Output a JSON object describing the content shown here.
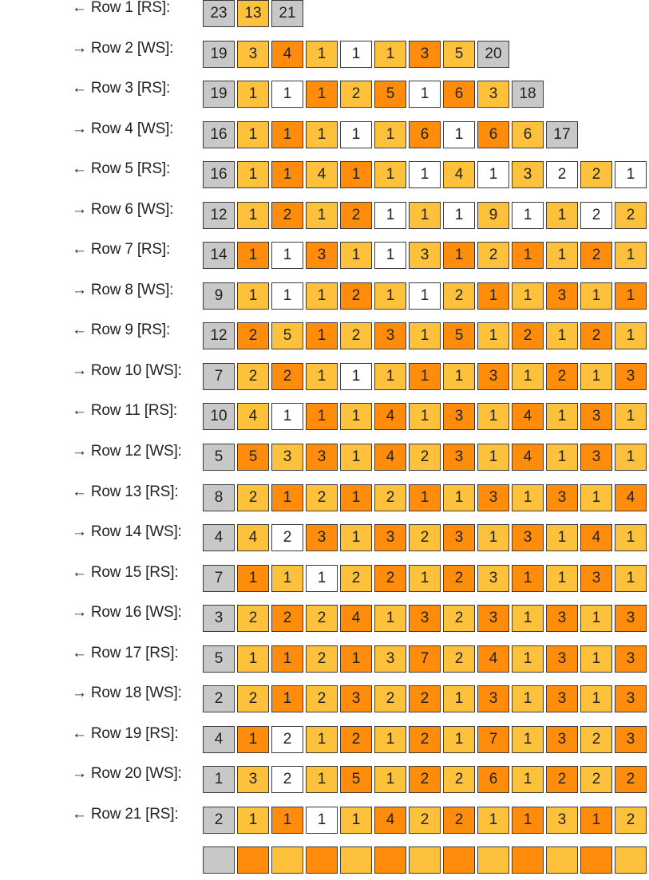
{
  "colors": {
    "g": "#c8c8c8",
    "o": "#ff8c0a",
    "y": "#fdc13b",
    "w": "#ffffff"
  },
  "rows": [
    {
      "label": "← Row 1 [RS]:",
      "cells": [
        [
          "23",
          "g"
        ],
        [
          "13",
          "y"
        ],
        [
          "21",
          "g"
        ]
      ]
    },
    {
      "label": "→ Row 2 [WS]:",
      "cells": [
        [
          "19",
          "g"
        ],
        [
          "3",
          "y"
        ],
        [
          "4",
          "o"
        ],
        [
          "1",
          "y"
        ],
        [
          "1",
          "w"
        ],
        [
          "1",
          "y"
        ],
        [
          "3",
          "o"
        ],
        [
          "5",
          "y"
        ],
        [
          "20",
          "g"
        ]
      ]
    },
    {
      "label": "← Row 3 [RS]:",
      "cells": [
        [
          "19",
          "g"
        ],
        [
          "1",
          "y"
        ],
        [
          "1",
          "w"
        ],
        [
          "1",
          "o"
        ],
        [
          "2",
          "y"
        ],
        [
          "5",
          "o"
        ],
        [
          "1",
          "w"
        ],
        [
          "6",
          "o"
        ],
        [
          "3",
          "y"
        ],
        [
          "18",
          "g"
        ]
      ]
    },
    {
      "label": "→ Row 4 [WS]:",
      "cells": [
        [
          "16",
          "g"
        ],
        [
          "1",
          "y"
        ],
        [
          "1",
          "o"
        ],
        [
          "1",
          "y"
        ],
        [
          "1",
          "w"
        ],
        [
          "1",
          "y"
        ],
        [
          "6",
          "o"
        ],
        [
          "1",
          "w"
        ],
        [
          "6",
          "o"
        ],
        [
          "6",
          "y"
        ],
        [
          "17",
          "g"
        ]
      ]
    },
    {
      "label": "← Row 5 [RS]:",
      "cells": [
        [
          "16",
          "g"
        ],
        [
          "1",
          "y"
        ],
        [
          "1",
          "o"
        ],
        [
          "4",
          "y"
        ],
        [
          "1",
          "o"
        ],
        [
          "1",
          "y"
        ],
        [
          "1",
          "w"
        ],
        [
          "4",
          "y"
        ],
        [
          "1",
          "w"
        ],
        [
          "3",
          "y"
        ],
        [
          "2",
          "w"
        ],
        [
          "2",
          "y"
        ],
        [
          "1",
          "w"
        ]
      ]
    },
    {
      "label": "→ Row 6 [WS]:",
      "cells": [
        [
          "12",
          "g"
        ],
        [
          "1",
          "y"
        ],
        [
          "2",
          "o"
        ],
        [
          "1",
          "y"
        ],
        [
          "2",
          "o"
        ],
        [
          "1",
          "w"
        ],
        [
          "1",
          "y"
        ],
        [
          "1",
          "w"
        ],
        [
          "9",
          "y"
        ],
        [
          "1",
          "w"
        ],
        [
          "1",
          "y"
        ],
        [
          "2",
          "w"
        ],
        [
          "2",
          "y"
        ]
      ]
    },
    {
      "label": "← Row 7 [RS]:",
      "cells": [
        [
          "14",
          "g"
        ],
        [
          "1",
          "o"
        ],
        [
          "1",
          "w"
        ],
        [
          "3",
          "o"
        ],
        [
          "1",
          "y"
        ],
        [
          "1",
          "w"
        ],
        [
          "3",
          "y"
        ],
        [
          "1",
          "o"
        ],
        [
          "2",
          "y"
        ],
        [
          "1",
          "o"
        ],
        [
          "1",
          "y"
        ],
        [
          "2",
          "o"
        ],
        [
          "1",
          "y"
        ]
      ]
    },
    {
      "label": "→ Row 8 [WS]:",
      "cells": [
        [
          "9",
          "g"
        ],
        [
          "1",
          "y"
        ],
        [
          "1",
          "w"
        ],
        [
          "1",
          "y"
        ],
        [
          "2",
          "o"
        ],
        [
          "1",
          "y"
        ],
        [
          "1",
          "w"
        ],
        [
          "2",
          "y"
        ],
        [
          "1",
          "o"
        ],
        [
          "1",
          "y"
        ],
        [
          "3",
          "o"
        ],
        [
          "1",
          "y"
        ],
        [
          "1",
          "o"
        ]
      ]
    },
    {
      "label": "← Row 9 [RS]:",
      "cells": [
        [
          "12",
          "g"
        ],
        [
          "2",
          "o"
        ],
        [
          "5",
          "y"
        ],
        [
          "1",
          "o"
        ],
        [
          "2",
          "y"
        ],
        [
          "3",
          "o"
        ],
        [
          "1",
          "y"
        ],
        [
          "5",
          "o"
        ],
        [
          "1",
          "y"
        ],
        [
          "2",
          "o"
        ],
        [
          "1",
          "y"
        ],
        [
          "2",
          "o"
        ],
        [
          "1",
          "y"
        ]
      ]
    },
    {
      "label": "→ Row 10 [WS]:",
      "cells": [
        [
          "7",
          "g"
        ],
        [
          "2",
          "y"
        ],
        [
          "2",
          "o"
        ],
        [
          "1",
          "y"
        ],
        [
          "1",
          "w"
        ],
        [
          "1",
          "y"
        ],
        [
          "1",
          "o"
        ],
        [
          "1",
          "y"
        ],
        [
          "3",
          "o"
        ],
        [
          "1",
          "y"
        ],
        [
          "2",
          "o"
        ],
        [
          "1",
          "y"
        ],
        [
          "3",
          "o"
        ]
      ]
    },
    {
      "label": "← Row 11 [RS]:",
      "cells": [
        [
          "10",
          "g"
        ],
        [
          "4",
          "y"
        ],
        [
          "1",
          "w"
        ],
        [
          "1",
          "o"
        ],
        [
          "1",
          "y"
        ],
        [
          "4",
          "o"
        ],
        [
          "1",
          "y"
        ],
        [
          "3",
          "o"
        ],
        [
          "1",
          "y"
        ],
        [
          "4",
          "o"
        ],
        [
          "1",
          "y"
        ],
        [
          "3",
          "o"
        ],
        [
          "1",
          "y"
        ]
      ]
    },
    {
      "label": "→ Row 12 [WS]:",
      "cells": [
        [
          "5",
          "g"
        ],
        [
          "5",
          "o"
        ],
        [
          "3",
          "y"
        ],
        [
          "3",
          "o"
        ],
        [
          "1",
          "y"
        ],
        [
          "4",
          "o"
        ],
        [
          "2",
          "y"
        ],
        [
          "3",
          "o"
        ],
        [
          "1",
          "y"
        ],
        [
          "4",
          "o"
        ],
        [
          "1",
          "y"
        ],
        [
          "3",
          "o"
        ],
        [
          "1",
          "y"
        ]
      ]
    },
    {
      "label": "← Row 13 [RS]:",
      "cells": [
        [
          "8",
          "g"
        ],
        [
          "2",
          "y"
        ],
        [
          "1",
          "o"
        ],
        [
          "2",
          "y"
        ],
        [
          "1",
          "o"
        ],
        [
          "2",
          "y"
        ],
        [
          "1",
          "o"
        ],
        [
          "1",
          "y"
        ],
        [
          "3",
          "o"
        ],
        [
          "1",
          "y"
        ],
        [
          "3",
          "o"
        ],
        [
          "1",
          "y"
        ],
        [
          "4",
          "o"
        ]
      ]
    },
    {
      "label": "→ Row 14 [WS]:",
      "cells": [
        [
          "4",
          "g"
        ],
        [
          "4",
          "y"
        ],
        [
          "2",
          "w"
        ],
        [
          "3",
          "o"
        ],
        [
          "1",
          "y"
        ],
        [
          "3",
          "o"
        ],
        [
          "2",
          "y"
        ],
        [
          "3",
          "o"
        ],
        [
          "1",
          "y"
        ],
        [
          "3",
          "o"
        ],
        [
          "1",
          "y"
        ],
        [
          "4",
          "o"
        ],
        [
          "1",
          "y"
        ]
      ]
    },
    {
      "label": "← Row 15 [RS]:",
      "cells": [
        [
          "7",
          "g"
        ],
        [
          "1",
          "o"
        ],
        [
          "1",
          "y"
        ],
        [
          "1",
          "w"
        ],
        [
          "2",
          "y"
        ],
        [
          "2",
          "o"
        ],
        [
          "1",
          "y"
        ],
        [
          "2",
          "o"
        ],
        [
          "3",
          "y"
        ],
        [
          "1",
          "o"
        ],
        [
          "1",
          "y"
        ],
        [
          "3",
          "o"
        ],
        [
          "1",
          "y"
        ]
      ]
    },
    {
      "label": "→ Row 16 [WS]:",
      "cells": [
        [
          "3",
          "g"
        ],
        [
          "2",
          "y"
        ],
        [
          "2",
          "o"
        ],
        [
          "2",
          "y"
        ],
        [
          "4",
          "o"
        ],
        [
          "1",
          "y"
        ],
        [
          "3",
          "o"
        ],
        [
          "2",
          "y"
        ],
        [
          "3",
          "o"
        ],
        [
          "1",
          "y"
        ],
        [
          "3",
          "o"
        ],
        [
          "1",
          "y"
        ],
        [
          "3",
          "o"
        ]
      ]
    },
    {
      "label": "← Row 17 [RS]:",
      "cells": [
        [
          "5",
          "g"
        ],
        [
          "1",
          "y"
        ],
        [
          "1",
          "o"
        ],
        [
          "2",
          "y"
        ],
        [
          "1",
          "o"
        ],
        [
          "3",
          "y"
        ],
        [
          "7",
          "o"
        ],
        [
          "2",
          "y"
        ],
        [
          "4",
          "o"
        ],
        [
          "1",
          "y"
        ],
        [
          "3",
          "o"
        ],
        [
          "1",
          "y"
        ],
        [
          "3",
          "o"
        ]
      ]
    },
    {
      "label": "→ Row 18 [WS]:",
      "cells": [
        [
          "2",
          "g"
        ],
        [
          "2",
          "y"
        ],
        [
          "1",
          "o"
        ],
        [
          "2",
          "y"
        ],
        [
          "3",
          "o"
        ],
        [
          "2",
          "y"
        ],
        [
          "2",
          "o"
        ],
        [
          "1",
          "y"
        ],
        [
          "3",
          "o"
        ],
        [
          "1",
          "y"
        ],
        [
          "3",
          "o"
        ],
        [
          "1",
          "y"
        ],
        [
          "3",
          "o"
        ]
      ]
    },
    {
      "label": "← Row 19 [RS]:",
      "cells": [
        [
          "4",
          "g"
        ],
        [
          "1",
          "o"
        ],
        [
          "2",
          "w"
        ],
        [
          "1",
          "y"
        ],
        [
          "2",
          "o"
        ],
        [
          "1",
          "y"
        ],
        [
          "2",
          "o"
        ],
        [
          "1",
          "y"
        ],
        [
          "7",
          "o"
        ],
        [
          "1",
          "y"
        ],
        [
          "3",
          "o"
        ],
        [
          "2",
          "y"
        ],
        [
          "3",
          "o"
        ]
      ]
    },
    {
      "label": "→ Row 20 [WS]:",
      "cells": [
        [
          "1",
          "g"
        ],
        [
          "3",
          "y"
        ],
        [
          "2",
          "w"
        ],
        [
          "1",
          "y"
        ],
        [
          "5",
          "o"
        ],
        [
          "1",
          "y"
        ],
        [
          "2",
          "o"
        ],
        [
          "2",
          "y"
        ],
        [
          "6",
          "o"
        ],
        [
          "1",
          "y"
        ],
        [
          "2",
          "o"
        ],
        [
          "2",
          "y"
        ],
        [
          "2",
          "o"
        ]
      ]
    },
    {
      "label": "← Row 21 [RS]:",
      "cells": [
        [
          "2",
          "g"
        ],
        [
          "1",
          "y"
        ],
        [
          "1",
          "o"
        ],
        [
          "1",
          "w"
        ],
        [
          "1",
          "y"
        ],
        [
          "4",
          "o"
        ],
        [
          "2",
          "y"
        ],
        [
          "2",
          "o"
        ],
        [
          "1",
          "y"
        ],
        [
          "1",
          "o"
        ],
        [
          "3",
          "y"
        ],
        [
          "1",
          "o"
        ],
        [
          "2",
          "y"
        ]
      ]
    },
    {
      "label": "",
      "cells": [
        [
          "",
          "g"
        ],
        [
          "",
          "o"
        ],
        [
          "",
          "y"
        ],
        [
          "",
          "o"
        ],
        [
          "",
          "y"
        ],
        [
          "",
          "o"
        ],
        [
          "",
          "y"
        ],
        [
          "",
          "o"
        ],
        [
          "",
          "y"
        ],
        [
          "",
          "o"
        ],
        [
          "",
          "y"
        ],
        [
          "",
          "o"
        ],
        [
          "",
          "y"
        ]
      ]
    }
  ]
}
